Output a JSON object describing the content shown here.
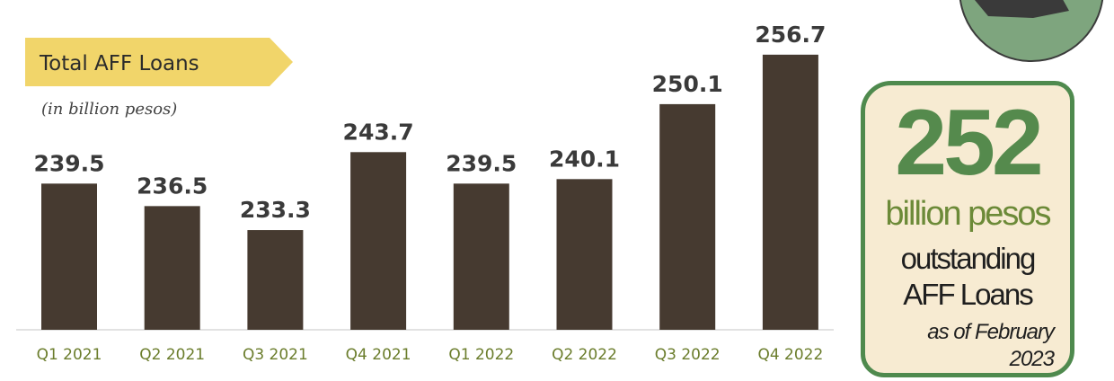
{
  "chart_data": {
    "type": "bar",
    "title": "Total AFF Loans",
    "subtitle": "(in billion pesos)",
    "categories": [
      "Q1 2021",
      "Q2 2021",
      "Q3 2021",
      "Q4 2021",
      "Q1 2022",
      "Q2 2022",
      "Q3 2022",
      "Q4 2022"
    ],
    "values": [
      239.5,
      236.5,
      233.3,
      243.7,
      239.5,
      240.1,
      250.1,
      256.7
    ],
    "value_labels": [
      "239.5",
      "236.5",
      "233.3",
      "243.7",
      "239.5",
      "240.1",
      "250.1",
      "256.7"
    ],
    "ylim": [
      220,
      258
    ],
    "xlabel": "",
    "ylabel": "",
    "grid": false,
    "bar_color": "#463a30",
    "title_banner_color": "#f1d56a"
  },
  "callout": {
    "value": "252",
    "unit": "billion pesos",
    "line1": "outstanding",
    "line2": "AFF Loans",
    "date_text": "as of February 2023",
    "border_color": "#4f8a4e",
    "background_color": "#f7ebd2",
    "value_color": "#558a4d"
  },
  "corner_badge": {
    "icon": "green-circle-badge-icon",
    "color": "#7ea57e"
  }
}
